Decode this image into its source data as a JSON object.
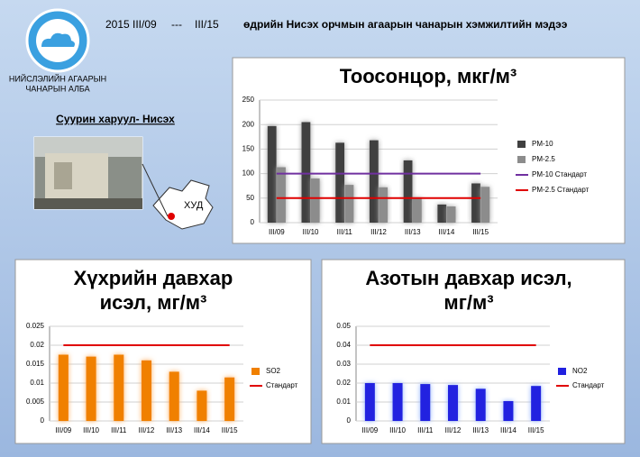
{
  "header": {
    "year": "2015",
    "from": "III/09",
    "dash": "---",
    "to": "III/15",
    "headline": "өдрийн Нисэх орчмын агаарын чанарын хэмжилтийн мэдээ",
    "org": [
      "НИЙСЛЭЛИЙН АГААРЫН",
      "ЧАНАРЫН АЛБА"
    ]
  },
  "station": {
    "title": "Суурин харуул- Нисэх",
    "district": "ХУД"
  },
  "chart_data": [
    {
      "type": "bar",
      "title": [
        "Тоосонцор, мкг/м³"
      ],
      "categories": [
        "III/09",
        "III/10",
        "III/11",
        "III/12",
        "III/13",
        "III/14",
        "III/15"
      ],
      "series": [
        {
          "name": "PM-10",
          "color": "#404040",
          "values": [
            197,
            205,
            163,
            168,
            127,
            37,
            80
          ]
        },
        {
          "name": "PM-2.5",
          "color": "#8c8c8c",
          "values": [
            113,
            90,
            77,
            72,
            50,
            33,
            73
          ]
        },
        {
          "name": "PM-10 Стандарт",
          "type": "line",
          "color": "#7030a0",
          "values": [
            100,
            100,
            100,
            100,
            100,
            100,
            100
          ]
        },
        {
          "name": "PM-2.5 Стандарт",
          "type": "line",
          "color": "#e00000",
          "values": [
            50,
            50,
            50,
            50,
            50,
            50,
            50
          ]
        }
      ],
      "ylim": [
        0,
        250
      ],
      "yticks": [
        0,
        50,
        100,
        150,
        200,
        250
      ],
      "legend": "right"
    },
    {
      "type": "bar",
      "title": [
        "Хүхрийн давхар",
        "исэл, мг/м³"
      ],
      "categories": [
        "III/09",
        "III/10",
        "III/11",
        "III/12",
        "III/13",
        "III/14",
        "III/15"
      ],
      "series": [
        {
          "name": "SO2",
          "color": "#f08000",
          "values": [
            0.0175,
            0.017,
            0.0175,
            0.016,
            0.013,
            0.008,
            0.0115
          ]
        },
        {
          "name": "Стандарт",
          "type": "line",
          "color": "#e00000",
          "values": [
            0.02,
            0.02,
            0.02,
            0.02,
            0.02,
            0.02,
            0.02
          ]
        }
      ],
      "ylim": [
        0,
        0.025
      ],
      "yticks": [
        0,
        0.005,
        0.01,
        0.015,
        0.02,
        0.025
      ],
      "legend": "right"
    },
    {
      "type": "bar",
      "title": [
        "Азотын давхар исэл,",
        "мг/м³"
      ],
      "categories": [
        "III/09",
        "III/10",
        "III/11",
        "III/12",
        "III/13",
        "III/14",
        "III/15"
      ],
      "series": [
        {
          "name": "NO2",
          "color": "#2020e0",
          "values": [
            0.02,
            0.02,
            0.0195,
            0.019,
            0.017,
            0.0105,
            0.0185
          ]
        },
        {
          "name": "Стандарт",
          "type": "line",
          "color": "#e00000",
          "values": [
            0.04,
            0.04,
            0.04,
            0.04,
            0.04,
            0.04,
            0.04
          ]
        }
      ],
      "ylim": [
        0,
        0.05
      ],
      "yticks": [
        0,
        0.01,
        0.02,
        0.03,
        0.04,
        0.05
      ],
      "legend": "right"
    }
  ]
}
